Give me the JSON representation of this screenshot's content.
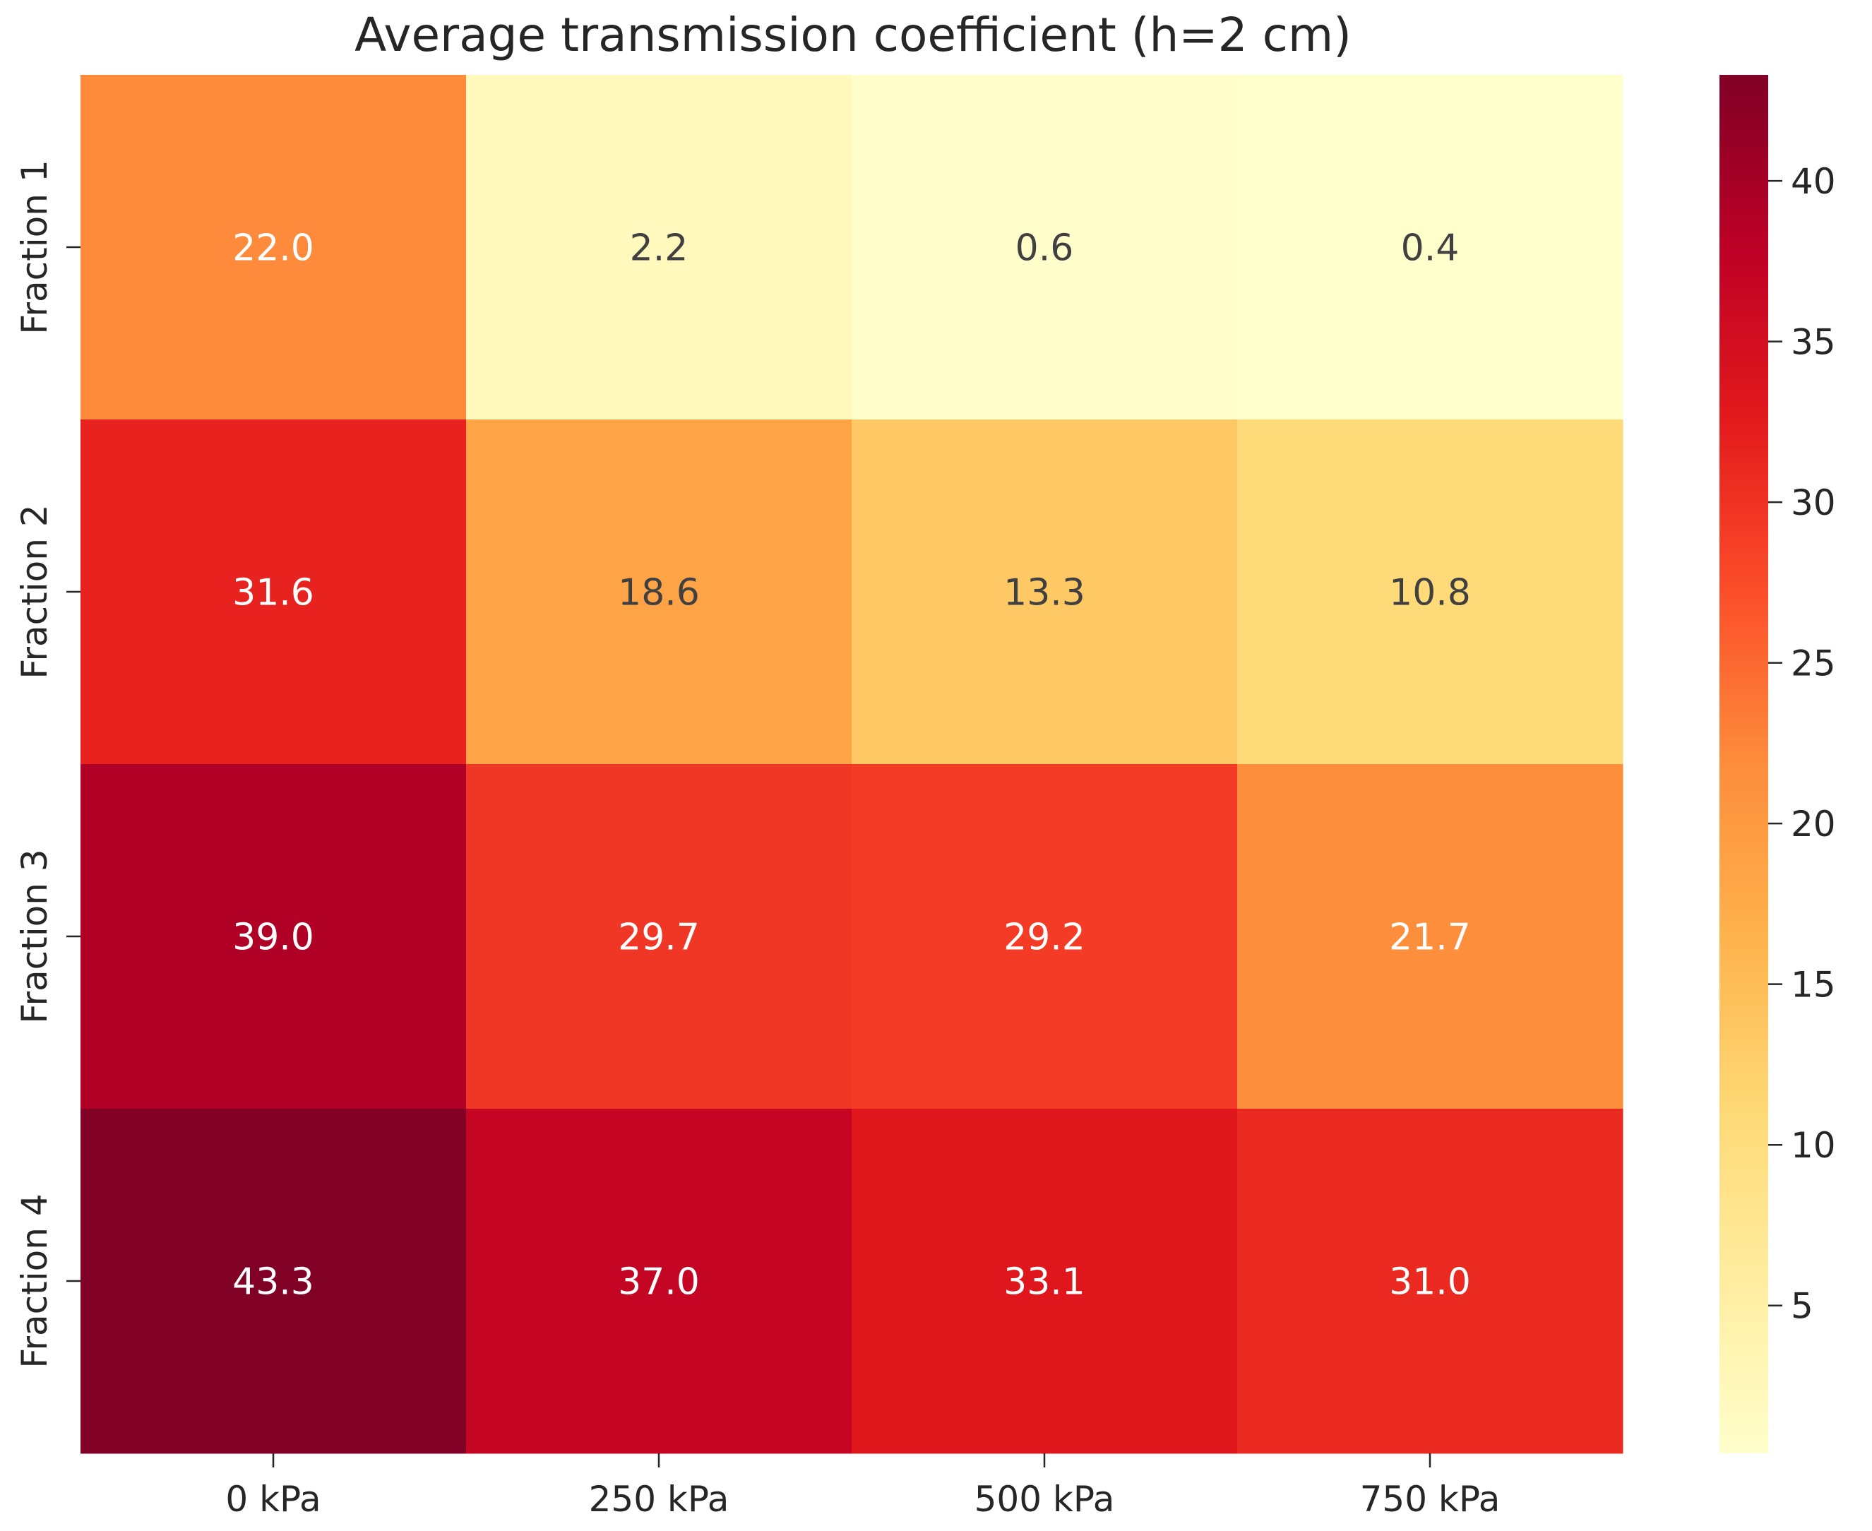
{
  "chart_data": {
    "type": "heatmap",
    "title": "Average transmission coefficient (h=2 cm)",
    "xlabel": "",
    "ylabel": "",
    "x_categories": [
      "0 kPa",
      "250 kPa",
      "500 kPa",
      "750 kPa"
    ],
    "y_categories": [
      "Fraction 1",
      "Fraction 2",
      "Fraction 3",
      "Fraction 4"
    ],
    "values": [
      [
        22.0,
        2.2,
        0.6,
        0.4
      ],
      [
        31.6,
        18.6,
        13.3,
        10.8
      ],
      [
        39.0,
        29.7,
        29.2,
        21.7
      ],
      [
        43.3,
        37.0,
        33.1,
        31.0
      ]
    ],
    "value_labels": [
      [
        "22.0",
        "2.2",
        "0.6",
        "0.4"
      ],
      [
        "31.6",
        "18.6",
        "13.3",
        "10.8"
      ],
      [
        "39.0",
        "29.7",
        "29.2",
        "21.7"
      ],
      [
        "43.3",
        "37.0",
        "33.1",
        "31.0"
      ]
    ],
    "colormap": "YlOrRd",
    "colorbar": {
      "range": [
        0.4,
        43.3
      ],
      "ticks": [
        5,
        10,
        15,
        20,
        25,
        30,
        35,
        40
      ],
      "tick_labels": [
        "5",
        "10",
        "15",
        "20",
        "25",
        "30",
        "35",
        "40"
      ]
    },
    "annotation_colors": {
      "light": "#ffffff",
      "dark": "#404040"
    },
    "colormap_stops": [
      "#ffffcc",
      "#ffeda0",
      "#fed976",
      "#feb24c",
      "#fd8d3c",
      "#fc4e2a",
      "#e31a1c",
      "#bd0026",
      "#800026"
    ]
  }
}
